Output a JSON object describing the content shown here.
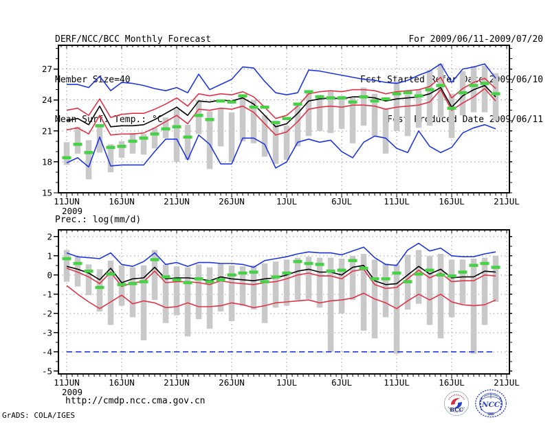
{
  "header": {
    "title": "DERF/NCC/BCC Monthly Forecast",
    "member_size": "Member Size=40",
    "for_range": "For 2009/06/11-2009/07/20",
    "fcst_started": "Fcst Started Refer Date 2009/06/10",
    "fcst_produced": "Fcst Produced Date 2009/06/11"
  },
  "footer": {
    "url": "http://cmdp.ncc.cma.gov.cn",
    "credit": "GrADS: COLA/IGES",
    "bcc_label": "BCC",
    "ncc_label": "NCC"
  },
  "colors": {
    "blue": "#1f35e0",
    "red": "#e03348",
    "black": "#000000",
    "green": "#46d146",
    "gray": "#c9c9c9",
    "grid": "#999999",
    "frame": "#000000"
  },
  "chart_data": [
    {
      "type": "line",
      "name": "mean-surface-temperature",
      "title": "Mean Surf. Temp.: °C",
      "x_tick_labels": [
        "11JUN",
        "16JUN",
        "21JUN",
        "26JUN",
        "1JUL",
        "6JUL",
        "11JUL",
        "16JUL",
        "21JUL"
      ],
      "x_tick_positions": [
        0,
        5,
        10,
        15,
        20,
        25,
        30,
        35,
        40
      ],
      "x_year_label": "2009",
      "x_days": 40,
      "ylim": [
        15,
        29.3
      ],
      "yticks": [
        15,
        18,
        21,
        24,
        27
      ],
      "grid_values": [
        18,
        21,
        24,
        27
      ],
      "y_minor_step": 1,
      "grid": true,
      "series": [
        {
          "name": "envelope-max",
          "color": "blue",
          "values": [
            25.5,
            25.5,
            25.2,
            26.3,
            24.9,
            25.7,
            25.6,
            25.4,
            25.1,
            24.9,
            25.2,
            24.7,
            26.5,
            25.0,
            25.5,
            26.0,
            27.2,
            27.1,
            25.8,
            24.7,
            24.5,
            24.7,
            26.9,
            26.8,
            26.6,
            26.4,
            26.2,
            26.0,
            25.9,
            25.7,
            25.6,
            25.9,
            26.4,
            26.8,
            27.5,
            25.7,
            27.0,
            27.2,
            27.5,
            26.1
          ]
        },
        {
          "name": "spread-upper",
          "color": "red",
          "values": [
            23.0,
            23.2,
            22.5,
            24.1,
            22.3,
            22.6,
            22.7,
            22.7,
            23.1,
            23.6,
            24.2,
            23.4,
            24.6,
            24.4,
            24.6,
            24.5,
            24.8,
            24.3,
            23.3,
            22.2,
            22.5,
            23.4,
            24.6,
            24.8,
            24.9,
            24.8,
            25.0,
            25.0,
            24.9,
            24.6,
            24.8,
            24.9,
            25.0,
            25.3,
            26.2,
            24.2,
            25.1,
            25.7,
            26.1,
            25.1
          ]
        },
        {
          "name": "ensemble-mean",
          "color": "black",
          "values": [
            22.0,
            22.2,
            21.6,
            23.4,
            21.4,
            21.5,
            21.5,
            21.6,
            22.1,
            22.7,
            23.3,
            22.5,
            23.9,
            23.8,
            24.0,
            23.9,
            24.2,
            23.6,
            22.5,
            21.4,
            21.7,
            22.7,
            23.9,
            24.1,
            24.2,
            24.1,
            24.3,
            24.3,
            24.2,
            23.9,
            24.1,
            24.2,
            24.3,
            24.6,
            25.2,
            23.3,
            24.4,
            25.0,
            25.4,
            24.3
          ]
        },
        {
          "name": "spread-lower",
          "color": "red",
          "values": [
            21.1,
            21.3,
            20.7,
            22.5,
            20.6,
            20.7,
            20.7,
            20.8,
            21.3,
            21.9,
            22.5,
            21.7,
            23.1,
            23.0,
            23.2,
            23.1,
            23.4,
            22.8,
            21.7,
            20.6,
            20.9,
            21.9,
            23.1,
            23.3,
            23.4,
            23.3,
            23.5,
            23.5,
            23.4,
            23.1,
            23.3,
            23.4,
            23.5,
            23.8,
            25.0,
            23.0,
            23.7,
            24.3,
            25.1,
            23.9
          ]
        },
        {
          "name": "envelope-min",
          "color": "blue",
          "values": [
            17.9,
            18.4,
            17.5,
            20.4,
            17.6,
            17.7,
            17.7,
            17.7,
            19.0,
            20.2,
            20.2,
            18.2,
            20.6,
            19.7,
            17.8,
            17.8,
            20.3,
            20.3,
            19.7,
            17.4,
            18.0,
            19.9,
            20.2,
            19.9,
            20.1,
            19.0,
            18.4,
            19.9,
            20.5,
            20.3,
            19.3,
            18.9,
            21.0,
            19.5,
            18.9,
            19.4,
            20.8,
            21.3,
            21.6,
            21.2
          ]
        }
      ],
      "bars": {
        "name": "member-range-bar",
        "color": "gray",
        "lo": [
          17.7,
          18.8,
          16.3,
          18.9,
          17.0,
          18.4,
          18.8,
          18.7,
          19.3,
          20.3,
          18.0,
          18.2,
          20.7,
          17.3,
          19.5,
          18.0,
          20.0,
          19.8,
          18.5,
          17.8,
          18.2,
          19.5,
          20.5,
          21.0,
          20.8,
          21.2,
          19.8,
          21.5,
          20.5,
          18.8,
          21.0,
          20.5,
          21.3,
          21.5,
          22.3,
          20.3,
          22.5,
          22.8,
          22.8,
          22.0
        ],
        "hi": [
          19.9,
          21.4,
          20.1,
          21.6,
          19.7,
          20.0,
          20.8,
          20.7,
          21.3,
          22.3,
          23.1,
          21.6,
          24.0,
          22.9,
          23.2,
          22.8,
          24.5,
          24.0,
          22.5,
          22.0,
          21.5,
          23.5,
          24.8,
          24.5,
          24.9,
          24.4,
          24.2,
          25.2,
          24.6,
          23.2,
          25.8,
          24.5,
          25.0,
          26.9,
          27.5,
          24.6,
          26.8,
          27.3,
          27.3,
          26.6
        ]
      },
      "dashes": {
        "name": "green-dash-marker",
        "color": "green",
        "values": [
          18.4,
          19.7,
          18.9,
          21.5,
          19.4,
          19.5,
          20.0,
          20.3,
          20.7,
          21.2,
          21.4,
          20.4,
          22.5,
          22.1,
          23.9,
          23.8,
          24.4,
          23.3,
          23.3,
          21.8,
          22.2,
          23.6,
          24.8,
          24.3,
          24.2,
          24.2,
          23.8,
          24.3,
          23.9,
          24.1,
          24.6,
          24.7,
          24.4,
          25.0,
          25.4,
          23.2,
          24.7,
          25.4,
          25.6,
          24.6
        ]
      }
    },
    {
      "type": "line",
      "name": "precipitation",
      "title": "Prec.: log(mm/d)",
      "x_tick_labels": [
        "11JUN",
        "16JUN",
        "21JUN",
        "26JUN",
        "1JUL",
        "6JUL",
        "11JUL",
        "16JUL",
        "21JUL"
      ],
      "x_tick_positions": [
        0,
        5,
        10,
        15,
        20,
        25,
        30,
        35,
        40
      ],
      "x_year_label": "2009",
      "x_days": 40,
      "ylim": [
        -5.15,
        2.35
      ],
      "yticks": [
        -5,
        -4,
        -3,
        -2,
        -1,
        0,
        1,
        2
      ],
      "grid_values": [
        -4,
        -3,
        -2,
        -1,
        0,
        1,
        2
      ],
      "y_minor_step": 0.5,
      "grid": true,
      "series": [
        {
          "name": "envelope-max",
          "color": "blue",
          "values": [
            1.15,
            0.95,
            0.9,
            0.85,
            1.15,
            0.55,
            0.45,
            0.7,
            1.15,
            0.55,
            0.65,
            0.45,
            0.65,
            0.65,
            0.6,
            0.6,
            0.55,
            0.4,
            0.75,
            0.85,
            0.95,
            1.1,
            1.2,
            1.15,
            1.15,
            1.05,
            1.25,
            1.45,
            0.9,
            0.55,
            0.5,
            1.3,
            1.65,
            1.25,
            1.4,
            1.0,
            0.95,
            0.95,
            1.1,
            1.2
          ]
        },
        {
          "name": "spread-upper",
          "color": "red",
          "values": [
            0.35,
            0.15,
            -0.1,
            -0.45,
            0.15,
            -0.6,
            -0.4,
            -0.35,
            0.2,
            -0.4,
            -0.35,
            -0.35,
            -0.4,
            -0.5,
            -0.3,
            -0.4,
            -0.45,
            -0.5,
            -0.4,
            -0.35,
            -0.2,
            0.0,
            0.1,
            -0.05,
            -0.05,
            -0.2,
            0.2,
            0.3,
            -0.5,
            -0.7,
            -0.65,
            -0.2,
            0.25,
            -0.15,
            0.1,
            -0.35,
            -0.3,
            -0.3,
            0.0,
            -0.05
          ]
        },
        {
          "name": "ensemble-mean",
          "color": "black",
          "values": [
            0.45,
            0.3,
            0.1,
            -0.25,
            0.35,
            -0.4,
            -0.2,
            -0.15,
            0.4,
            -0.2,
            -0.15,
            -0.15,
            -0.2,
            -0.3,
            -0.1,
            -0.2,
            -0.25,
            -0.3,
            -0.2,
            -0.15,
            0.0,
            0.2,
            0.3,
            0.15,
            0.15,
            0.0,
            0.4,
            0.5,
            -0.3,
            -0.5,
            -0.45,
            0.0,
            0.45,
            0.05,
            0.3,
            -0.15,
            -0.1,
            -0.1,
            0.2,
            0.15
          ]
        },
        {
          "name": "spread-lower",
          "color": "red",
          "values": [
            -0.55,
            -1.0,
            -1.4,
            -1.75,
            -1.4,
            -1.05,
            -1.5,
            -1.35,
            -1.45,
            -1.7,
            -1.65,
            -1.45,
            -1.65,
            -1.65,
            -1.6,
            -1.45,
            -1.55,
            -1.7,
            -1.6,
            -1.45,
            -1.4,
            -1.35,
            -1.3,
            -1.45,
            -1.35,
            -1.3,
            -1.2,
            -0.95,
            -1.25,
            -1.45,
            -1.75,
            -1.35,
            -1.0,
            -1.3,
            -1.0,
            -1.4,
            -1.55,
            -1.6,
            -1.55,
            -1.3
          ]
        },
        {
          "name": "envelope-min",
          "color": "blue",
          "dashed": true,
          "values": [
            -4,
            -4,
            -4,
            -4,
            -4,
            -4,
            -4,
            -4,
            -4,
            -4,
            -4,
            -4,
            -4,
            -4,
            -4,
            -4,
            -4,
            -4,
            -4,
            -4,
            -4,
            -4,
            -4,
            -4,
            -4,
            -4,
            -4,
            -4,
            -4,
            -4,
            -4,
            -4,
            -4,
            -4,
            -4,
            -4,
            -4,
            -4,
            -4,
            -4
          ]
        }
      ],
      "bars": {
        "name": "member-range-bar",
        "color": "gray",
        "lo": [
          -0.35,
          -0.6,
          -1.05,
          -1.9,
          -2.6,
          -1.6,
          -2.2,
          -3.4,
          -1.3,
          -2.5,
          -2.1,
          -3.2,
          -2.3,
          -2.8,
          -1.9,
          -2.4,
          -1.6,
          -1.8,
          -2.5,
          -1.7,
          -1.6,
          -1.3,
          -1.25,
          -1.7,
          -4.0,
          -2.0,
          -1.3,
          -2.9,
          -3.3,
          -2.2,
          -4.1,
          -1.8,
          -1.5,
          -2.6,
          -3.3,
          -2.2,
          -1.5,
          -4.1,
          -2.6,
          -1.4
        ],
        "hi": [
          1.3,
          0.95,
          0.55,
          0.3,
          0.75,
          0.5,
          0.4,
          0.5,
          1.3,
          0.55,
          0.45,
          0.4,
          0.55,
          0.4,
          0.6,
          0.5,
          0.45,
          0.5,
          0.6,
          0.7,
          0.8,
          0.9,
          0.95,
          0.9,
          0.9,
          0.85,
          1.0,
          1.1,
          0.8,
          0.6,
          0.55,
          1.05,
          1.3,
          1.0,
          1.1,
          0.8,
          0.8,
          0.85,
          0.9,
          1.0
        ]
      },
      "dashes": {
        "name": "green-dash-marker",
        "color": "green",
        "values": [
          0.85,
          0.6,
          0.2,
          -0.65,
          0.05,
          -0.5,
          -0.45,
          -0.35,
          0.8,
          -0.1,
          -0.25,
          -0.4,
          -0.2,
          -0.35,
          -0.25,
          0.0,
          0.1,
          0.15,
          -0.35,
          -0.1,
          0.1,
          0.7,
          0.6,
          0.55,
          0.2,
          0.25,
          0.75,
          0.35,
          -0.2,
          -0.2,
          0.1,
          -0.35,
          0.05,
          0.25,
          0.0,
          -0.05,
          0.15,
          0.5,
          0.6,
          0.4
        ]
      }
    }
  ]
}
